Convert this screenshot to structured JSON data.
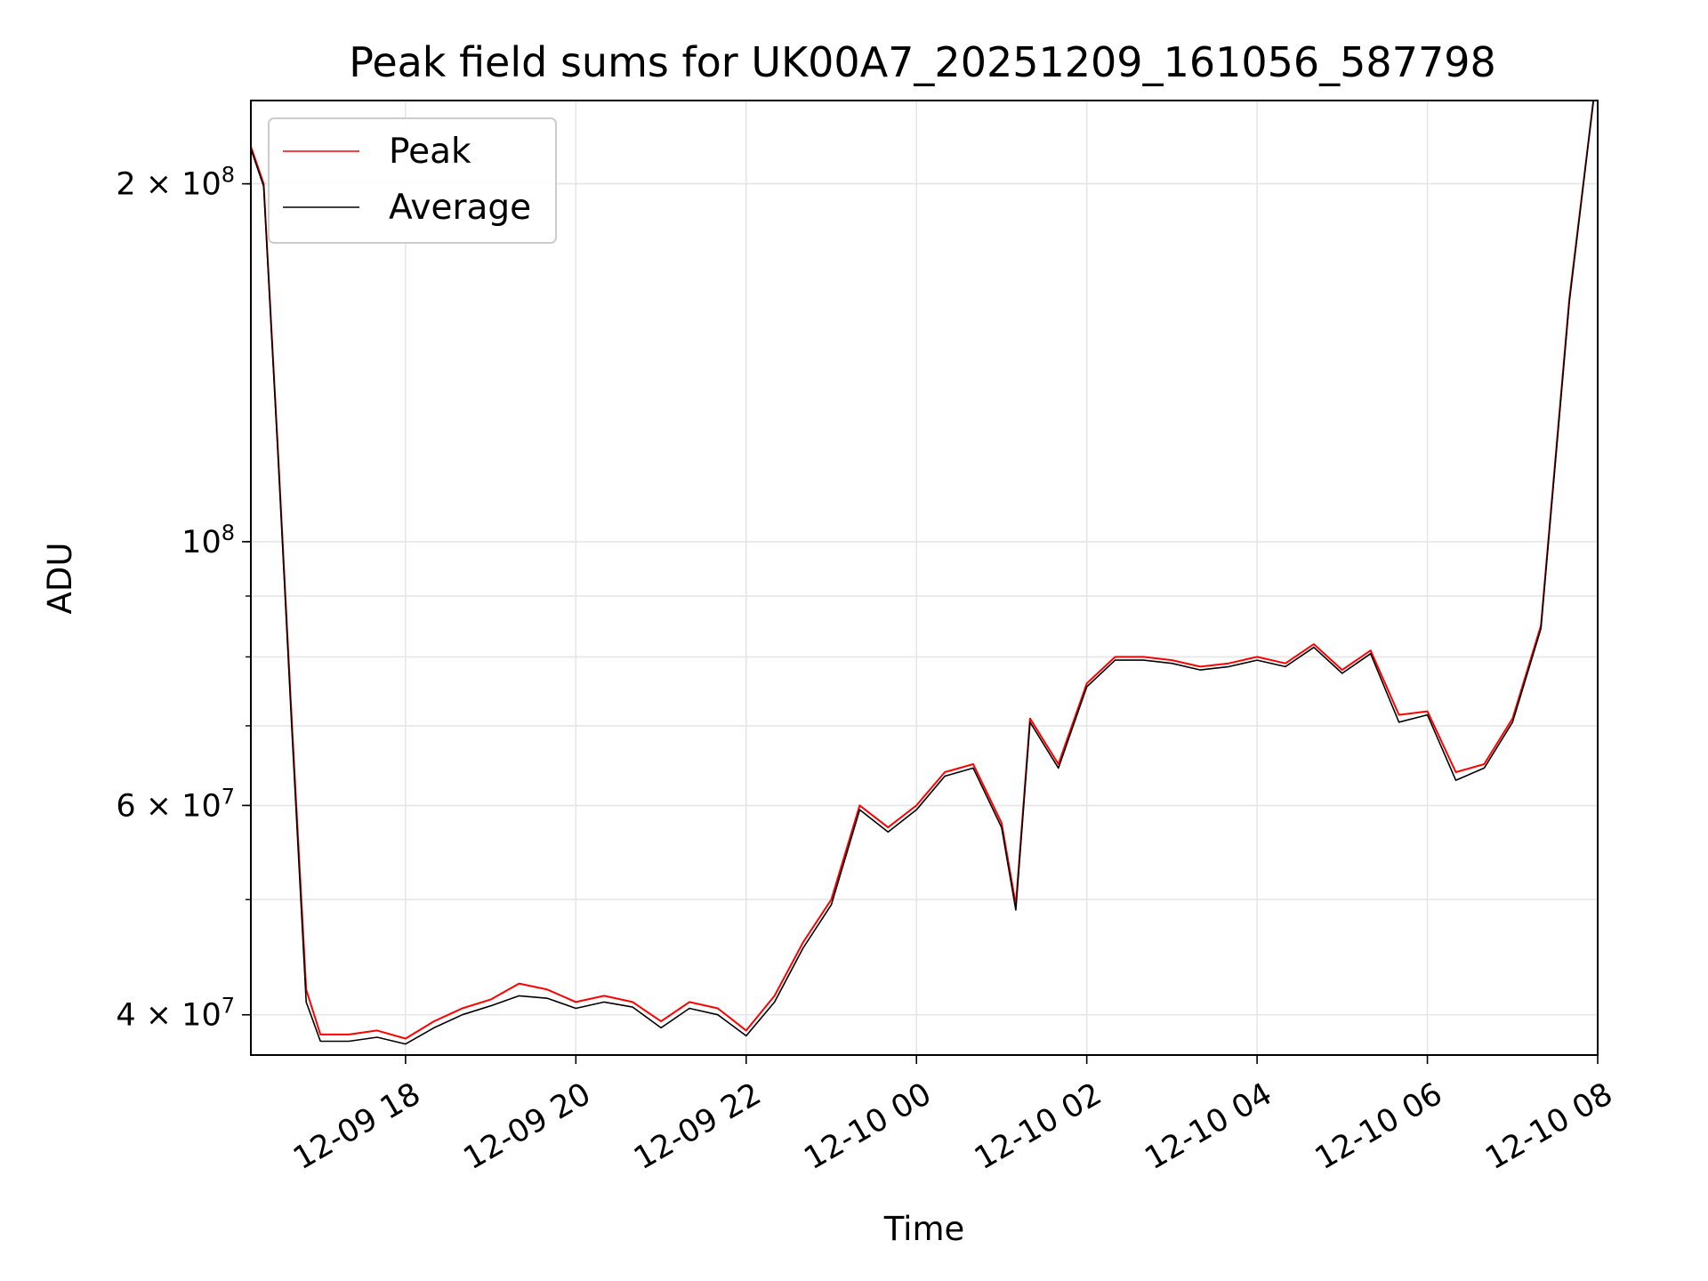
{
  "chart_data": {
    "type": "line",
    "title": "Peak field sums for UK00A7_20251209_161056_587798",
    "xlabel": "Time",
    "ylabel": "ADU",
    "yscale": "log",
    "ylim": [
      37000000,
      235000000
    ],
    "xlim": [
      "2025-12-09 16:11",
      "2025-12-10 08:00"
    ],
    "grid": true,
    "legend": "upper-left",
    "x_ticks": [
      "12-09 18",
      "12-09 20",
      "12-09 22",
      "12-10 00",
      "12-10 02",
      "12-10 04",
      "12-10 06",
      "12-10 08"
    ],
    "y_ticks": [
      {
        "label": "4 × 10^7",
        "mant": "4",
        "exp": "7",
        "value": 40000000
      },
      {
        "label": "6 × 10^7",
        "mant": "6",
        "exp": "7",
        "value": 60000000
      },
      {
        "label": "10^8",
        "mant": "",
        "exp": "8",
        "value": 100000000
      },
      {
        "label": "2 × 10^8",
        "mant": "2",
        "exp": "8",
        "value": 200000000
      }
    ],
    "x": [
      "16:11",
      "16:20",
      "16:30",
      "16:40",
      "16:50",
      "17:00",
      "17:20",
      "17:40",
      "18:00",
      "18:20",
      "18:40",
      "19:00",
      "19:20",
      "19:40",
      "20:00",
      "20:20",
      "20:40",
      "21:00",
      "21:20",
      "21:40",
      "22:00",
      "22:20",
      "22:40",
      "23:00",
      "23:20",
      "23:40",
      "00:00",
      "00:20",
      "00:40",
      "01:00",
      "01:10",
      "01:20",
      "01:40",
      "02:00",
      "02:20",
      "02:40",
      "03:00",
      "03:20",
      "03:40",
      "04:00",
      "04:20",
      "04:40",
      "05:00",
      "05:20",
      "05:40",
      "06:00",
      "06:20",
      "06:40",
      "07:00",
      "07:20",
      "07:40",
      "07:57"
    ],
    "series": [
      {
        "name": "Peak",
        "color": "#ff0000",
        "values": [
          215000000,
          200000000,
          120000000,
          70000000,
          42000000,
          38500000,
          38500000,
          38800000,
          38200000,
          39500000,
          40500000,
          41200000,
          42500000,
          42000000,
          41000000,
          41500000,
          41000000,
          39500000,
          41000000,
          40500000,
          38800000,
          41500000,
          46000000,
          50000000,
          60000000,
          57500000,
          60000000,
          64000000,
          65000000,
          58000000,
          49500000,
          71000000,
          65000000,
          76000000,
          80000000,
          80000000,
          79500000,
          78500000,
          79000000,
          80000000,
          79000000,
          82000000,
          78000000,
          81000000,
          71500000,
          72000000,
          64000000,
          65000000,
          71000000,
          85000000,
          160000000,
          235000000
        ]
      },
      {
        "name": "Average",
        "color": "#000000",
        "values": [
          214000000,
          199000000,
          119000000,
          69000000,
          41000000,
          38000000,
          38000000,
          38300000,
          37800000,
          39000000,
          40000000,
          40700000,
          41500000,
          41300000,
          40500000,
          41000000,
          40600000,
          39000000,
          40500000,
          40000000,
          38400000,
          41000000,
          45500000,
          49500000,
          59500000,
          57000000,
          59500000,
          63500000,
          64500000,
          57500000,
          49000000,
          70500000,
          64500000,
          75500000,
          79500000,
          79500000,
          79000000,
          78000000,
          78500000,
          79500000,
          78500000,
          81500000,
          77500000,
          80500000,
          70500000,
          71500000,
          63000000,
          64500000,
          70500000,
          84500000,
          159000000,
          235000000
        ]
      }
    ]
  }
}
